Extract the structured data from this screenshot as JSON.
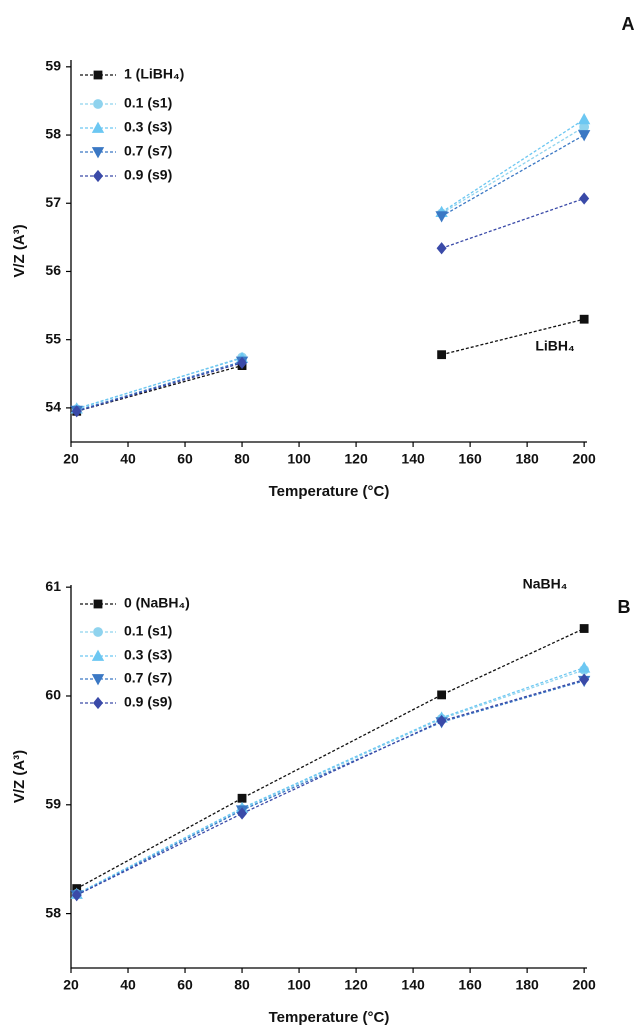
{
  "chart_data": [
    {
      "type": "line",
      "panel_label": "A",
      "xlabel": "Temperature (°C)",
      "ylabel": "V/Z (A³)",
      "xlim": [
        20,
        201
      ],
      "ylim": [
        53.5,
        59.1
      ],
      "xticks": [
        20,
        40,
        60,
        80,
        100,
        120,
        140,
        160,
        180,
        200
      ],
      "yticks": [
        54,
        55,
        56,
        57,
        58,
        59
      ],
      "legend": "upper left",
      "annotation": "LiBH₄",
      "series": [
        {
          "name": "1 (LiBH₄)",
          "color": "#111111",
          "marker": "square",
          "x": [
            22,
            80,
            null,
            150,
            200
          ],
          "values": [
            53.95,
            54.62,
            null,
            54.78,
            55.3
          ]
        },
        {
          "name": "0.1 (s1)",
          "color": "#8fd3ee",
          "marker": "circle",
          "x": [
            22,
            80,
            null,
            150,
            200
          ],
          "values": [
            53.98,
            54.74,
            null,
            56.85,
            58.12
          ]
        },
        {
          "name": "0.3 (s3)",
          "color": "#6cc7f2",
          "marker": "triangle",
          "x": [
            22,
            80,
            null,
            150,
            200
          ],
          "values": [
            53.99,
            54.73,
            null,
            56.87,
            58.23
          ]
        },
        {
          "name": "0.7 (s7)",
          "color": "#3b78c4",
          "marker": "triangle-down",
          "x": [
            22,
            80,
            null,
            150,
            200
          ],
          "values": [
            53.96,
            54.68,
            null,
            56.81,
            58.0
          ]
        },
        {
          "name": "0.9 (s9)",
          "color": "#3a4aa8",
          "marker": "diamond",
          "x": [
            22,
            80,
            null,
            150,
            200
          ],
          "values": [
            53.95,
            54.66,
            null,
            56.34,
            57.07
          ]
        }
      ]
    },
    {
      "type": "line",
      "panel_label": "B",
      "xlabel": "Temperature (°C)",
      "ylabel": "V/Z (A³)",
      "xlim": [
        20,
        201
      ],
      "ylim": [
        57.5,
        61.02
      ],
      "xticks": [
        20,
        40,
        60,
        80,
        100,
        120,
        140,
        160,
        180,
        200
      ],
      "yticks": [
        58,
        59,
        60,
        61
      ],
      "legend": "upper left",
      "annotation": "NaBH₄",
      "series": [
        {
          "name": "0 (NaBH₄)",
          "color": "#111111",
          "marker": "square",
          "x": [
            22,
            80,
            150,
            200
          ],
          "values": [
            58.23,
            59.06,
            60.01,
            60.62
          ]
        },
        {
          "name": "0.1 (s1)",
          "color": "#8fd3ee",
          "marker": "circle",
          "x": [
            22,
            80,
            150,
            200
          ],
          "values": [
            58.18,
            58.96,
            59.79,
            60.24
          ]
        },
        {
          "name": "0.3 (s3)",
          "color": "#6cc7f2",
          "marker": "triangle",
          "x": [
            22,
            80,
            150,
            200
          ],
          "values": [
            58.18,
            58.97,
            59.8,
            60.26
          ]
        },
        {
          "name": "0.7 (s7)",
          "color": "#3b78c4",
          "marker": "triangle-down",
          "x": [
            22,
            80,
            150,
            200
          ],
          "values": [
            58.17,
            58.95,
            59.76,
            60.14
          ]
        },
        {
          "name": "0.9 (s9)",
          "color": "#3a4aa8",
          "marker": "diamond",
          "x": [
            22,
            80,
            150,
            200
          ],
          "values": [
            58.17,
            58.92,
            59.77,
            60.15
          ]
        }
      ]
    }
  ]
}
